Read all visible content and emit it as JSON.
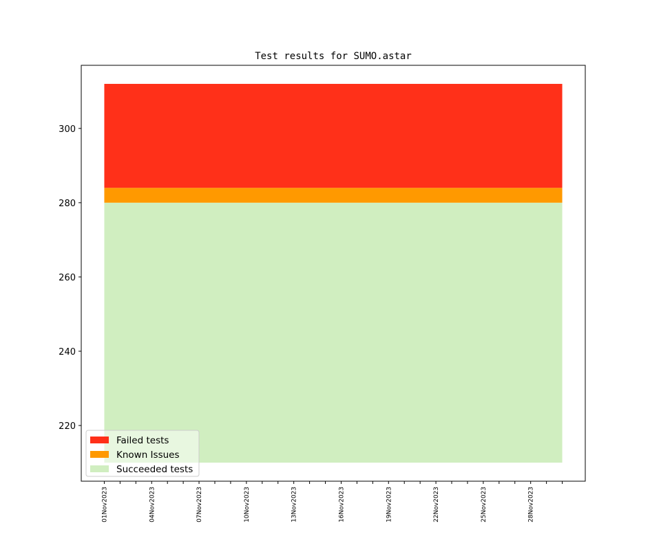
{
  "chart_data": {
    "type": "area",
    "title": "Test results for SUMO.astar",
    "xlabel": "",
    "ylabel": "",
    "x_start": "2023-11-01",
    "x_end": "2023-11-30",
    "xlim": [
      "2023-10-30T13:00",
      "2023-12-01T11:00"
    ],
    "ylim": [
      205,
      317
    ],
    "yticks": [
      220,
      240,
      260,
      280,
      300
    ],
    "xtick_labels": [
      "01Nov2023",
      "04Nov2023",
      "07Nov2023",
      "10Nov2023",
      "13Nov2023",
      "16Nov2023",
      "19Nov2023",
      "22Nov2023",
      "25Nov2023",
      "28Nov2023"
    ],
    "stack_base": 210,
    "series": [
      {
        "name": "Succeeded tests",
        "color": "#d0eec0",
        "from": 210,
        "to": 280
      },
      {
        "name": "Known Issues",
        "color": "#ff9900",
        "from": 280,
        "to": 284
      },
      {
        "name": "Failed tests",
        "color": "#ff3019",
        "from": 284,
        "to": 312
      }
    ],
    "legend_order": [
      "Failed tests",
      "Known Issues",
      "Succeeded tests"
    ],
    "legend_placement": "lower-left",
    "grid": false
  }
}
